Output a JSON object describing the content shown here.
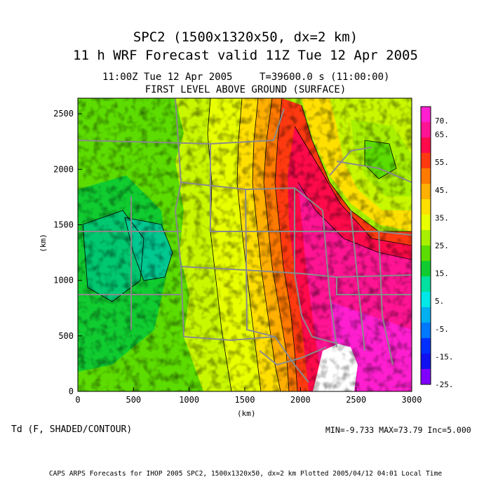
{
  "header": {
    "title_line1": "SPC2 (1500x1320x50, dx=2 km)",
    "title_line2": "11 h WRF Forecast valid 11Z Tue 12 Apr 2005",
    "valid_time": "11:00Z Tue 12 Apr 2005",
    "model_time": "T=39600.0 s (11:00:00)",
    "level": "FIRST LEVEL ABOVE GROUND (SURFACE)"
  },
  "axes": {
    "xlabel": "(km)",
    "ylabel": "(km)",
    "xticks": [
      "0",
      "500",
      "1000",
      "1500",
      "2000",
      "2500",
      "3000"
    ],
    "yticks": [
      "0",
      "500",
      "1000",
      "1500",
      "2000",
      "2500"
    ],
    "xrange": [
      0,
      3000
    ],
    "yrange": [
      0,
      2640
    ]
  },
  "colorbar": {
    "labels": [
      "70.",
      "65.",
      "55.",
      "45.",
      "35.",
      "25.",
      "15.",
      "5.",
      "-5.",
      "-15.",
      "-25."
    ],
    "colors": [
      "#ff1fd0",
      "#ff1493",
      "#ff0a4a",
      "#ff3a10",
      "#ff7a00",
      "#ffb000",
      "#ffe000",
      "#e8ff00",
      "#a8f000",
      "#5cdc00",
      "#10cc30",
      "#00e0a0",
      "#00e8e8",
      "#00b0f0",
      "#0078ff",
      "#0030ff",
      "#1010f0",
      "#8000ff"
    ]
  },
  "footer": {
    "variable": "Td (F, SHADED/CONTOUR)",
    "stats": "MIN=-9.733 MAX=73.79 Inc=5.000",
    "credit": "CAPS ARPS Forecasts for IHOP 2005  SPC2, 1500x1320x50, dx=2 km  Plotted 2005/04/12 04:01 Local Time"
  }
}
